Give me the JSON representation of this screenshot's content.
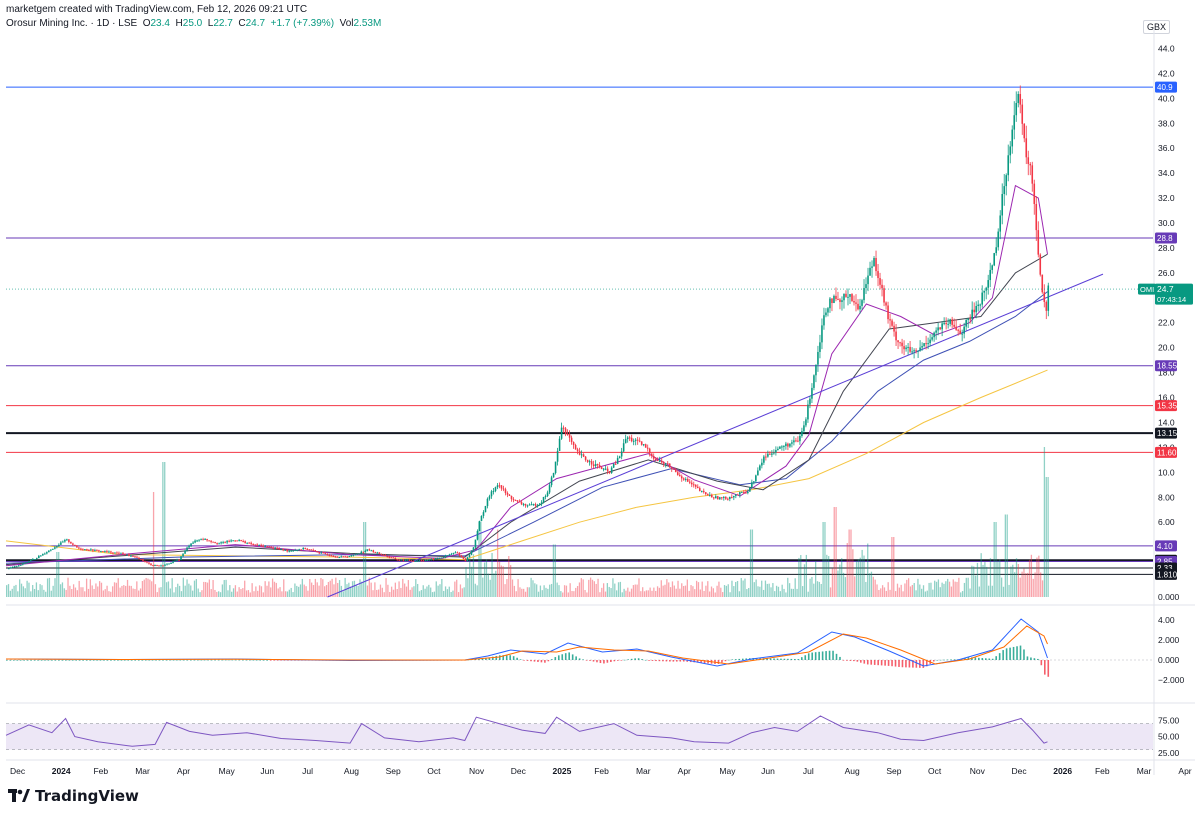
{
  "header": {
    "credit": "marketgem created with TradingView.com, Feb 12, 2026 09:21 UTC",
    "symbol": "Orosur Mining Inc. · 1D · LSE",
    "o_label": "O",
    "o": "23.4",
    "h_label": "H",
    "h": "25.0",
    "l_label": "L",
    "l": "22.7",
    "c_label": "C",
    "c": "24.7",
    "change": "+1.7 (+7.39%)",
    "vol_label": "Vol",
    "vol": "2.53M"
  },
  "currency": "GBX",
  "brand": {
    "name": "TradingView"
  },
  "colors": {
    "up": "#089981",
    "down": "#f23645",
    "blue_line": "#2962ff",
    "purple_line": "#673ab7",
    "red_line": "#f23645",
    "black_line": "#131722",
    "trend": "#5b3fd6",
    "ma_fast": "#9c27b0",
    "ma_mid": "#434651",
    "ma_slow": "#3f51b5",
    "ma_200": "#f5c542",
    "macd": "#2962ff",
    "signal": "#ff6d00",
    "rsi": "#7e57c2",
    "rsi_band": "#ede7f6"
  },
  "chart_data": [
    {
      "type": "candlestick",
      "title": "Orosur Mining Inc. · 1D · LSE",
      "x_ticks": [
        "Dec",
        "2024",
        "Feb",
        "Mar",
        "Apr",
        "May",
        "Jun",
        "Jul",
        "Aug",
        "Sep",
        "Oct",
        "Nov",
        "Dec",
        "2025",
        "Feb",
        "Mar",
        "Apr",
        "May",
        "Jun",
        "Jul",
        "Aug",
        "Sep",
        "Oct",
        "Nov",
        "Dec",
        "2026",
        "Feb",
        "Mar",
        "Apr",
        "May"
      ],
      "y_ticks": [
        "44.0",
        "42.0",
        "40.0",
        "38.0",
        "36.0",
        "34.0",
        "32.0",
        "30.0",
        "28.0",
        "26.0",
        "24.0",
        "22.0",
        "20.0",
        "18.0",
        "16.0",
        "14.0",
        "12.0",
        "10.0",
        "8.00",
        "6.00",
        "4.00",
        "2.00",
        "0.000"
      ],
      "ylim": [
        0,
        45
      ],
      "horizontal_levels": [
        {
          "value": 40.9,
          "label": "40.9",
          "kind": "blue"
        },
        {
          "value": 28.8,
          "label": "28.8",
          "kind": "purple"
        },
        {
          "value": 18.55,
          "label": "18.55",
          "kind": "purple"
        },
        {
          "value": 15.35,
          "label": "15.35",
          "kind": "red"
        },
        {
          "value": 13.15,
          "label": "13.15",
          "kind": "black"
        },
        {
          "value": 11.6,
          "label": "11.60",
          "kind": "red"
        },
        {
          "value": 4.1,
          "label": "4.10",
          "kind": "purple"
        },
        {
          "value": 2.95,
          "label": "2.95",
          "kind": "black"
        },
        {
          "value": 2.85,
          "label": "2.85",
          "kind": "purple"
        },
        {
          "value": 2.33,
          "label": "2.33",
          "kind": "black"
        },
        {
          "value": 1.81,
          "label": "1.810",
          "kind": "black"
        }
      ],
      "last_price": {
        "value": 24.7,
        "label": "OMI",
        "price": "24.7",
        "countdown": "07:43:14"
      },
      "trendlines": [
        {
          "x1": 0.2803,
          "y1": 0.0,
          "x2": 0.9564,
          "y2": 25.9
        }
      ],
      "price_path": [
        [
          0.0,
          2.3
        ],
        [
          0.01,
          2.5
        ],
        [
          0.025,
          3.1
        ],
        [
          0.04,
          3.9
        ],
        [
          0.052,
          4.6
        ],
        [
          0.062,
          3.9
        ],
        [
          0.08,
          3.7
        ],
        [
          0.1,
          3.5
        ],
        [
          0.115,
          3.1
        ],
        [
          0.125,
          2.6
        ],
        [
          0.135,
          2.5
        ],
        [
          0.15,
          3.0
        ],
        [
          0.16,
          4.3
        ],
        [
          0.17,
          4.7
        ],
        [
          0.185,
          4.3
        ],
        [
          0.2,
          4.6
        ],
        [
          0.215,
          4.2
        ],
        [
          0.23,
          4.0
        ],
        [
          0.245,
          3.7
        ],
        [
          0.26,
          3.9
        ],
        [
          0.275,
          3.5
        ],
        [
          0.29,
          3.2
        ],
        [
          0.3,
          3.3
        ],
        [
          0.315,
          3.8
        ],
        [
          0.33,
          3.3
        ],
        [
          0.34,
          3.0
        ],
        [
          0.355,
          2.9
        ],
        [
          0.37,
          3.0
        ],
        [
          0.38,
          3.2
        ],
        [
          0.392,
          3.6
        ],
        [
          0.4,
          2.9
        ],
        [
          0.407,
          4.0
        ],
        [
          0.412,
          6.0
        ],
        [
          0.42,
          8.0
        ],
        [
          0.428,
          9.1
        ],
        [
          0.436,
          8.2
        ],
        [
          0.445,
          7.6
        ],
        [
          0.455,
          7.3
        ],
        [
          0.465,
          7.5
        ],
        [
          0.472,
          8.5
        ],
        [
          0.478,
          10.5
        ],
        [
          0.484,
          13.8
        ],
        [
          0.49,
          12.8
        ],
        [
          0.496,
          11.7
        ],
        [
          0.505,
          11.0
        ],
        [
          0.515,
          10.5
        ],
        [
          0.525,
          10.0
        ],
        [
          0.534,
          11.2
        ],
        [
          0.54,
          12.8
        ],
        [
          0.548,
          12.5
        ],
        [
          0.556,
          12.1
        ],
        [
          0.566,
          11.0
        ],
        [
          0.576,
          10.6
        ],
        [
          0.586,
          9.8
        ],
        [
          0.596,
          9.1
        ],
        [
          0.606,
          8.4
        ],
        [
          0.616,
          8.0
        ],
        [
          0.626,
          7.9
        ],
        [
          0.636,
          8.2
        ],
        [
          0.646,
          8.5
        ],
        [
          0.652,
          9.5
        ],
        [
          0.66,
          11.2
        ],
        [
          0.67,
          11.8
        ],
        [
          0.68,
          12.2
        ],
        [
          0.69,
          12.5
        ],
        [
          0.696,
          14.0
        ],
        [
          0.701,
          16.5
        ],
        [
          0.706,
          19.0
        ],
        [
          0.712,
          22.5
        ],
        [
          0.718,
          24.0
        ],
        [
          0.726,
          23.5
        ],
        [
          0.734,
          24.5
        ],
        [
          0.742,
          23.0
        ],
        [
          0.75,
          25.5
        ],
        [
          0.756,
          27.2
        ],
        [
          0.762,
          25.0
        ],
        [
          0.768,
          22.5
        ],
        [
          0.774,
          21.0
        ],
        [
          0.782,
          20.0
        ],
        [
          0.792,
          19.5
        ],
        [
          0.802,
          20.5
        ],
        [
          0.812,
          21.5
        ],
        [
          0.822,
          22.0
        ],
        [
          0.832,
          21.2
        ],
        [
          0.842,
          22.8
        ],
        [
          0.85,
          24.0
        ],
        [
          0.856,
          25.5
        ],
        [
          0.862,
          28.0
        ],
        [
          0.868,
          32.0
        ],
        [
          0.874,
          36.0
        ],
        [
          0.878,
          39.0
        ],
        [
          0.882,
          40.3
        ],
        [
          0.886,
          37.0
        ],
        [
          0.89,
          35.0
        ],
        [
          0.894,
          33.5
        ],
        [
          0.898,
          29.0
        ],
        [
          0.902,
          25.0
        ],
        [
          0.906,
          23.0
        ],
        [
          0.908,
          24.7
        ]
      ],
      "ma_fast": [
        [
          0.0,
          2.5
        ],
        [
          0.1,
          3.4
        ],
        [
          0.2,
          4.2
        ],
        [
          0.3,
          3.4
        ],
        [
          0.38,
          3.1
        ],
        [
          0.41,
          3.8
        ],
        [
          0.44,
          7.2
        ],
        [
          0.48,
          9.5
        ],
        [
          0.52,
          10.5
        ],
        [
          0.56,
          11.5
        ],
        [
          0.6,
          9.4
        ],
        [
          0.64,
          8.1
        ],
        [
          0.68,
          10.5
        ],
        [
          0.7,
          13.0
        ],
        [
          0.72,
          19.5
        ],
        [
          0.75,
          23.5
        ],
        [
          0.78,
          22.5
        ],
        [
          0.81,
          21.0
        ],
        [
          0.84,
          22.0
        ],
        [
          0.86,
          24.0
        ],
        [
          0.88,
          33.0
        ],
        [
          0.9,
          32.0
        ],
        [
          0.908,
          27.5
        ]
      ],
      "ma_mid": [
        [
          0.0,
          2.6
        ],
        [
          0.1,
          3.3
        ],
        [
          0.2,
          4.0
        ],
        [
          0.3,
          3.5
        ],
        [
          0.4,
          3.2
        ],
        [
          0.44,
          6.0
        ],
        [
          0.5,
          9.3
        ],
        [
          0.56,
          11.0
        ],
        [
          0.62,
          9.3
        ],
        [
          0.66,
          8.6
        ],
        [
          0.7,
          11.0
        ],
        [
          0.73,
          16.5
        ],
        [
          0.77,
          21.5
        ],
        [
          0.81,
          22.0
        ],
        [
          0.85,
          22.5
        ],
        [
          0.88,
          26.0
        ],
        [
          0.908,
          27.5
        ]
      ],
      "ma_slow": [
        [
          0.0,
          2.7
        ],
        [
          0.15,
          3.2
        ],
        [
          0.3,
          3.4
        ],
        [
          0.4,
          3.3
        ],
        [
          0.46,
          6.0
        ],
        [
          0.52,
          8.8
        ],
        [
          0.58,
          10.3
        ],
        [
          0.64,
          9.0
        ],
        [
          0.68,
          9.5
        ],
        [
          0.72,
          12.5
        ],
        [
          0.76,
          16.5
        ],
        [
          0.8,
          19.0
        ],
        [
          0.84,
          20.5
        ],
        [
          0.88,
          22.5
        ],
        [
          0.908,
          24.5
        ]
      ],
      "ma_200": [
        [
          0.0,
          4.5
        ],
        [
          0.1,
          3.4
        ],
        [
          0.2,
          3.3
        ],
        [
          0.3,
          3.2
        ],
        [
          0.4,
          3.0
        ],
        [
          0.45,
          4.5
        ],
        [
          0.5,
          6.0
        ],
        [
          0.55,
          7.2
        ],
        [
          0.6,
          8.0
        ],
        [
          0.65,
          8.6
        ],
        [
          0.7,
          9.5
        ],
        [
          0.75,
          11.5
        ],
        [
          0.8,
          14.0
        ],
        [
          0.85,
          16.0
        ],
        [
          0.908,
          18.2
        ]
      ],
      "volume_spikes": [
        [
          0.045,
          0.3
        ],
        [
          0.128,
          0.7
        ],
        [
          0.137,
          0.9
        ],
        [
          0.312,
          0.5
        ],
        [
          0.412,
          0.5
        ],
        [
          0.428,
          0.45
        ],
        [
          0.478,
          0.35
        ],
        [
          0.65,
          0.45
        ],
        [
          0.712,
          0.5
        ],
        [
          0.722,
          0.6
        ],
        [
          0.735,
          0.45
        ],
        [
          0.772,
          0.4
        ],
        [
          0.862,
          0.5
        ],
        [
          0.872,
          0.55
        ],
        [
          0.905,
          1.0
        ],
        [
          0.907,
          0.8
        ]
      ]
    },
    {
      "type": "line",
      "title": "",
      "y_ticks": [
        "4.00",
        "2.000",
        "0.000",
        "−2.000"
      ],
      "ylim": [
        -2.8,
        4.8
      ],
      "series": [
        {
          "values": [
            [
              0.0,
              0.1
            ],
            [
              0.1,
              0.05
            ],
            [
              0.2,
              0.1
            ],
            [
              0.3,
              -0.05
            ],
            [
              0.4,
              0.0
            ],
            [
              0.42,
              0.4
            ],
            [
              0.44,
              1.0
            ],
            [
              0.47,
              0.6
            ],
            [
              0.49,
              1.7
            ],
            [
              0.52,
              0.8
            ],
            [
              0.55,
              1.1
            ],
            [
              0.58,
              0.3
            ],
            [
              0.62,
              -0.6
            ],
            [
              0.65,
              0.1
            ],
            [
              0.69,
              0.7
            ],
            [
              0.72,
              2.8
            ],
            [
              0.74,
              2.3
            ],
            [
              0.77,
              0.9
            ],
            [
              0.8,
              -0.6
            ],
            [
              0.83,
              0.0
            ],
            [
              0.86,
              1.0
            ],
            [
              0.885,
              4.1
            ],
            [
              0.9,
              2.8
            ],
            [
              0.908,
              0.2
            ]
          ]
        },
        {
          "values": [
            [
              0.0,
              0.1
            ],
            [
              0.1,
              0.05
            ],
            [
              0.2,
              0.08
            ],
            [
              0.3,
              0.0
            ],
            [
              0.4,
              0.0
            ],
            [
              0.43,
              0.3
            ],
            [
              0.45,
              0.9
            ],
            [
              0.48,
              0.8
            ],
            [
              0.5,
              1.3
            ],
            [
              0.53,
              1.0
            ],
            [
              0.56,
              0.9
            ],
            [
              0.59,
              0.2
            ],
            [
              0.63,
              -0.4
            ],
            [
              0.66,
              0.1
            ],
            [
              0.7,
              0.8
            ],
            [
              0.73,
              2.6
            ],
            [
              0.75,
              2.2
            ],
            [
              0.78,
              1.0
            ],
            [
              0.81,
              -0.4
            ],
            [
              0.84,
              0.1
            ],
            [
              0.87,
              1.3
            ],
            [
              0.89,
              3.4
            ],
            [
              0.905,
              2.4
            ],
            [
              0.908,
              1.6
            ]
          ]
        }
      ]
    },
    {
      "type": "line",
      "title": "",
      "y_ticks": [
        "75.00",
        "50.00",
        "25.00"
      ],
      "ylim": [
        20,
        88
      ],
      "bands": [
        30,
        70
      ],
      "series": [
        {
          "values": [
            [
              0.0,
              52
            ],
            [
              0.02,
              68
            ],
            [
              0.04,
              56
            ],
            [
              0.052,
              78
            ],
            [
              0.06,
              50
            ],
            [
              0.08,
              42
            ],
            [
              0.11,
              35
            ],
            [
              0.13,
              38
            ],
            [
              0.14,
              72
            ],
            [
              0.16,
              58
            ],
            [
              0.18,
              52
            ],
            [
              0.21,
              56
            ],
            [
              0.24,
              47
            ],
            [
              0.27,
              44
            ],
            [
              0.3,
              40
            ],
            [
              0.31,
              70
            ],
            [
              0.33,
              48
            ],
            [
              0.36,
              42
            ],
            [
              0.39,
              48
            ],
            [
              0.4,
              44
            ],
            [
              0.41,
              80
            ],
            [
              0.43,
              70
            ],
            [
              0.45,
              60
            ],
            [
              0.47,
              55
            ],
            [
              0.48,
              80
            ],
            [
              0.5,
              58
            ],
            [
              0.53,
              70
            ],
            [
              0.55,
              52
            ],
            [
              0.58,
              48
            ],
            [
              0.6,
              42
            ],
            [
              0.63,
              40
            ],
            [
              0.65,
              56
            ],
            [
              0.67,
              64
            ],
            [
              0.69,
              58
            ],
            [
              0.71,
              82
            ],
            [
              0.73,
              64
            ],
            [
              0.76,
              56
            ],
            [
              0.78,
              46
            ],
            [
              0.8,
              44
            ],
            [
              0.83,
              56
            ],
            [
              0.86,
              65
            ],
            [
              0.885,
              78
            ],
            [
              0.895,
              60
            ],
            [
              0.905,
              40
            ],
            [
              0.908,
              42
            ]
          ]
        }
      ]
    }
  ]
}
